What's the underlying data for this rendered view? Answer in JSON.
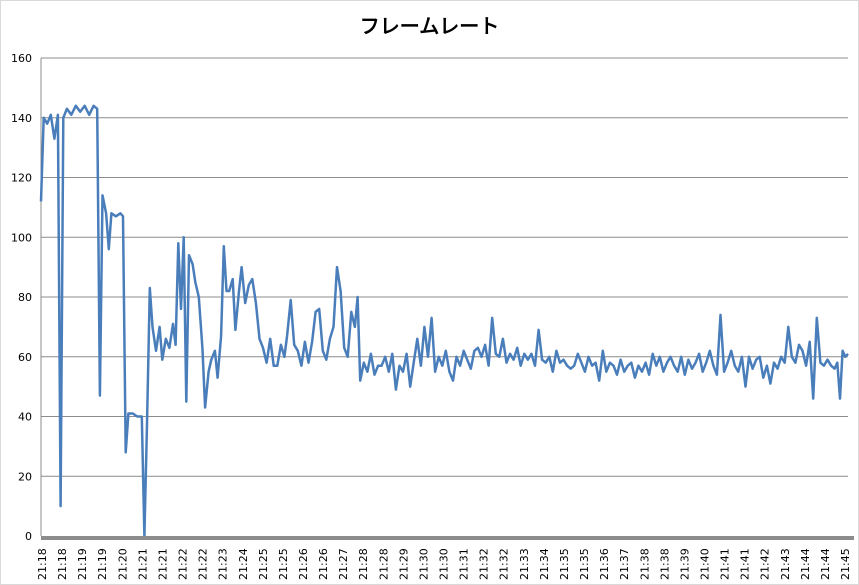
{
  "chart_data": {
    "type": "line",
    "title": "フレームレート",
    "xlabel": "",
    "ylabel": "",
    "ylim": [
      0,
      160
    ],
    "yticks": [
      0,
      20,
      40,
      60,
      80,
      100,
      120,
      140,
      160
    ],
    "grid": true,
    "legend": "none",
    "x_tick_labels": [
      "21:18",
      "21:18",
      "21:19",
      "21:19",
      "21:20",
      "21:21",
      "21:21",
      "21:22",
      "21:22",
      "21:23",
      "21:24",
      "21:25",
      "21:25",
      "21:26",
      "21:26",
      "21:27",
      "21:28",
      "21:28",
      "21:29",
      "21:30",
      "21:30",
      "21:31",
      "21:32",
      "21:32",
      "21:33",
      "21:34",
      "21:35",
      "21:35",
      "21:36",
      "21:37",
      "21:38",
      "21:38",
      "21:39",
      "21:40",
      "21:41",
      "21:41",
      "21:42",
      "21:43",
      "21:44",
      "21:44",
      "21:45"
    ],
    "series": [
      {
        "color": "#4a7ebb",
        "values": [
          [
            0,
            112
          ],
          [
            0.3,
            140
          ],
          [
            0.7,
            138
          ],
          [
            1.1,
            141
          ],
          [
            1.5,
            133
          ],
          [
            1.9,
            141
          ],
          [
            2.2,
            10
          ],
          [
            2.5,
            140
          ],
          [
            2.9,
            143
          ],
          [
            3.4,
            141
          ],
          [
            3.9,
            144
          ],
          [
            4.4,
            142
          ],
          [
            4.9,
            144
          ],
          [
            5.4,
            141
          ],
          [
            5.9,
            144
          ],
          [
            6.3,
            143
          ],
          [
            6.6,
            47
          ],
          [
            6.9,
            114
          ],
          [
            7.3,
            108
          ],
          [
            7.6,
            96
          ],
          [
            7.9,
            108
          ],
          [
            8.4,
            107
          ],
          [
            8.9,
            108
          ],
          [
            9.2,
            107
          ],
          [
            9.5,
            28
          ],
          [
            9.8,
            41
          ],
          [
            10.3,
            41
          ],
          [
            10.8,
            40
          ],
          [
            11.3,
            40
          ],
          [
            11.6,
            0
          ],
          [
            11.9,
            39
          ],
          [
            12.2,
            83
          ],
          [
            12.5,
            70
          ],
          [
            12.9,
            62
          ],
          [
            13.3,
            70
          ],
          [
            13.6,
            59
          ],
          [
            14,
            66
          ],
          [
            14.4,
            63
          ],
          [
            14.8,
            71
          ],
          [
            15.1,
            64
          ],
          [
            15.4,
            98
          ],
          [
            15.7,
            76
          ],
          [
            16,
            100
          ],
          [
            16.3,
            45
          ],
          [
            16.6,
            94
          ],
          [
            17,
            91
          ],
          [
            17.3,
            85
          ],
          [
            17.7,
            80
          ],
          [
            18.1,
            63
          ],
          [
            18.4,
            43
          ],
          [
            18.8,
            55
          ],
          [
            19.1,
            59
          ],
          [
            19.5,
            62
          ],
          [
            19.8,
            53
          ],
          [
            20.2,
            67
          ],
          [
            20.5,
            97
          ],
          [
            20.8,
            82
          ],
          [
            21.1,
            82
          ],
          [
            21.5,
            86
          ],
          [
            21.8,
            69
          ],
          [
            22.2,
            82
          ],
          [
            22.5,
            90
          ],
          [
            22.9,
            78
          ],
          [
            23.3,
            84
          ],
          [
            23.7,
            86
          ],
          [
            24.1,
            78
          ],
          [
            24.5,
            66
          ],
          [
            24.9,
            63
          ],
          [
            25.3,
            58
          ],
          [
            25.7,
            66
          ],
          [
            26.1,
            57
          ],
          [
            26.5,
            57
          ],
          [
            26.9,
            64
          ],
          [
            27.3,
            60
          ],
          [
            27.6,
            67
          ],
          [
            28,
            79
          ],
          [
            28.4,
            64
          ],
          [
            28.8,
            62
          ],
          [
            29.2,
            57
          ],
          [
            29.6,
            65
          ],
          [
            30,
            58
          ],
          [
            30.4,
            65
          ],
          [
            30.8,
            75
          ],
          [
            31.2,
            76
          ],
          [
            31.6,
            62
          ],
          [
            32,
            59
          ],
          [
            32.4,
            66
          ],
          [
            32.8,
            70
          ],
          [
            33.2,
            90
          ],
          [
            33.6,
            82
          ],
          [
            34,
            63
          ],
          [
            34.4,
            60
          ],
          [
            34.8,
            75
          ],
          [
            35.2,
            70
          ],
          [
            35.5,
            80
          ],
          [
            35.8,
            52
          ],
          [
            36.2,
            58
          ],
          [
            36.6,
            55
          ],
          [
            37,
            61
          ],
          [
            37.4,
            54
          ],
          [
            37.8,
            57
          ],
          [
            38.2,
            57
          ],
          [
            38.6,
            60
          ],
          [
            39,
            55
          ],
          [
            39.4,
            61
          ],
          [
            39.8,
            49
          ],
          [
            40.2,
            57
          ],
          [
            40.6,
            55
          ],
          [
            41,
            61
          ],
          [
            41.4,
            50
          ],
          [
            41.8,
            58
          ],
          [
            42.2,
            66
          ],
          [
            42.6,
            57
          ],
          [
            43,
            70
          ],
          [
            43.4,
            60
          ],
          [
            43.8,
            73
          ],
          [
            44.2,
            55
          ],
          [
            44.6,
            60
          ],
          [
            45,
            57
          ],
          [
            45.4,
            62
          ],
          [
            45.8,
            55
          ],
          [
            46.2,
            52
          ],
          [
            46.6,
            60
          ],
          [
            47,
            57
          ],
          [
            47.4,
            62
          ],
          [
            47.8,
            59
          ],
          [
            48.2,
            56
          ],
          [
            48.6,
            62
          ],
          [
            49,
            63
          ],
          [
            49.4,
            60
          ],
          [
            49.8,
            64
          ],
          [
            50.2,
            57
          ],
          [
            50.6,
            73
          ],
          [
            51,
            61
          ],
          [
            51.4,
            60
          ],
          [
            51.8,
            66
          ],
          [
            52.2,
            58
          ],
          [
            52.6,
            61
          ],
          [
            53,
            59
          ],
          [
            53.4,
            63
          ],
          [
            53.8,
            57
          ],
          [
            54.2,
            61
          ],
          [
            54.6,
            59
          ],
          [
            55,
            61
          ],
          [
            55.4,
            57
          ],
          [
            55.8,
            69
          ],
          [
            56.2,
            59
          ],
          [
            56.6,
            58
          ],
          [
            57,
            60
          ],
          [
            57.4,
            55
          ],
          [
            57.8,
            62
          ],
          [
            58.2,
            58
          ],
          [
            58.6,
            59
          ],
          [
            59,
            57
          ],
          [
            59.4,
            56
          ],
          [
            59.8,
            57
          ],
          [
            60.2,
            61
          ],
          [
            60.6,
            58
          ],
          [
            61,
            55
          ],
          [
            61.4,
            60
          ],
          [
            61.8,
            57
          ],
          [
            62.2,
            58
          ],
          [
            62.6,
            52
          ],
          [
            63,
            62
          ],
          [
            63.4,
            55
          ],
          [
            63.8,
            58
          ],
          [
            64.2,
            57
          ],
          [
            64.6,
            54
          ],
          [
            65,
            59
          ],
          [
            65.4,
            55
          ],
          [
            65.8,
            57
          ],
          [
            66.2,
            58
          ],
          [
            66.6,
            53
          ],
          [
            67,
            57
          ],
          [
            67.4,
            55
          ],
          [
            67.8,
            58
          ],
          [
            68.2,
            54
          ],
          [
            68.6,
            61
          ],
          [
            69,
            57
          ],
          [
            69.4,
            60
          ],
          [
            69.8,
            55
          ],
          [
            70.2,
            58
          ],
          [
            70.6,
            60
          ],
          [
            71,
            57
          ],
          [
            71.4,
            55
          ],
          [
            71.8,
            60
          ],
          [
            72.2,
            54
          ],
          [
            72.6,
            59
          ],
          [
            73,
            56
          ],
          [
            73.4,
            58
          ],
          [
            73.8,
            61
          ],
          [
            74.2,
            55
          ],
          [
            74.6,
            58
          ],
          [
            75,
            62
          ],
          [
            75.4,
            57
          ],
          [
            75.8,
            54
          ],
          [
            76.2,
            74
          ],
          [
            76.6,
            55
          ],
          [
            77,
            58
          ],
          [
            77.4,
            62
          ],
          [
            77.8,
            57
          ],
          [
            78.2,
            55
          ],
          [
            78.6,
            60
          ],
          [
            79,
            50
          ],
          [
            79.4,
            60
          ],
          [
            79.8,
            56
          ],
          [
            80.2,
            59
          ],
          [
            80.6,
            60
          ],
          [
            81,
            53
          ],
          [
            81.4,
            57
          ],
          [
            81.8,
            51
          ],
          [
            82.2,
            58
          ],
          [
            82.6,
            56
          ],
          [
            83,
            60
          ],
          [
            83.4,
            58
          ],
          [
            83.8,
            70
          ],
          [
            84.2,
            60
          ],
          [
            84.6,
            58
          ],
          [
            85,
            64
          ],
          [
            85.4,
            62
          ],
          [
            85.8,
            57
          ],
          [
            86.2,
            65
          ],
          [
            86.6,
            46
          ],
          [
            87,
            73
          ],
          [
            87.4,
            58
          ],
          [
            87.8,
            57
          ],
          [
            88.2,
            59
          ],
          [
            88.6,
            57
          ],
          [
            89,
            56
          ],
          [
            89.3,
            58
          ],
          [
            89.6,
            46
          ],
          [
            89.9,
            62
          ],
          [
            90.2,
            60
          ],
          [
            90.5,
            61
          ]
        ]
      }
    ]
  }
}
